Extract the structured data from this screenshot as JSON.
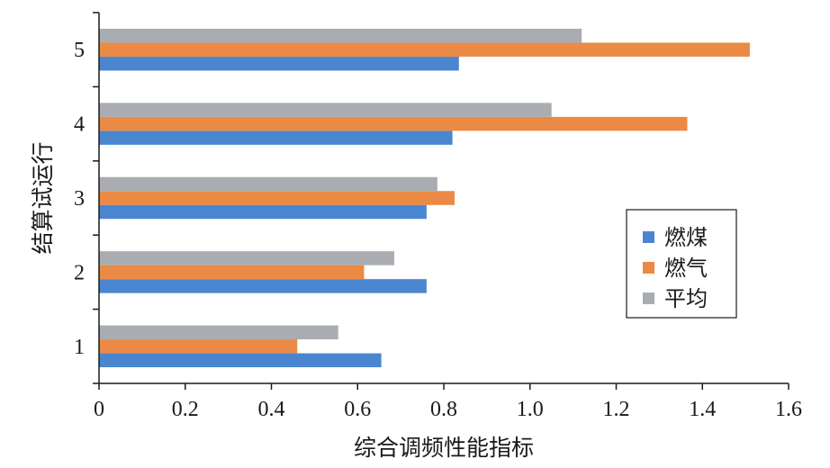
{
  "chart_data": {
    "type": "bar",
    "orientation": "horizontal",
    "categories": [
      "1",
      "2",
      "3",
      "4",
      "5"
    ],
    "series": [
      {
        "name": "燃煤",
        "color": "#4a86d0",
        "values": [
          0.655,
          0.76,
          0.76,
          0.82,
          0.835
        ]
      },
      {
        "name": "燃气",
        "color": "#ea8a44",
        "values": [
          0.46,
          0.615,
          0.825,
          1.365,
          1.51
        ]
      },
      {
        "name": "平均",
        "color": "#a9acb1",
        "values": [
          0.555,
          0.685,
          0.785,
          1.05,
          1.12
        ]
      }
    ],
    "xlabel": "综合调频性能指标",
    "ylabel": "结算试运行",
    "xlim": [
      0,
      1.6
    ],
    "xticks": [
      "0",
      "0.2",
      "0.4",
      "0.6",
      "0.8",
      "1.0",
      "1.2",
      "1.4",
      "1.6"
    ],
    "grid": false,
    "legend_position": "right"
  }
}
